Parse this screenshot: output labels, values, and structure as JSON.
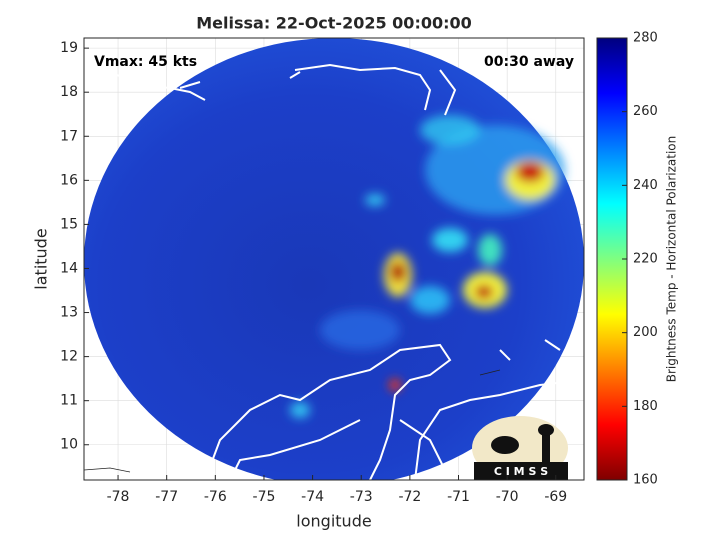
{
  "chart_data": {
    "type": "map",
    "title": "Melissa: 22-Oct-2025 00:00:00",
    "xlabel": "longitude",
    "ylabel": "latitude",
    "xlim": [
      -78.7,
      -68.42
    ],
    "ylim": [
      9.2,
      19.23
    ],
    "xticks": [
      -78,
      -77,
      -76,
      -75,
      -74,
      -73,
      -72,
      -71,
      -70,
      -69
    ],
    "yticks": [
      10,
      11,
      12,
      13,
      14,
      15,
      16,
      17,
      18,
      19
    ],
    "grid": true,
    "annotations": {
      "left": "Vmax: 45 kts",
      "right": "00:30 away"
    },
    "colorbar": {
      "label": "Brightness Temp - Horizontal Polarization",
      "clim": [
        160,
        280
      ],
      "ticks": [
        160,
        180,
        200,
        220,
        240,
        260,
        280
      ],
      "colormap": "jet"
    },
    "logo": "C I M S S"
  }
}
